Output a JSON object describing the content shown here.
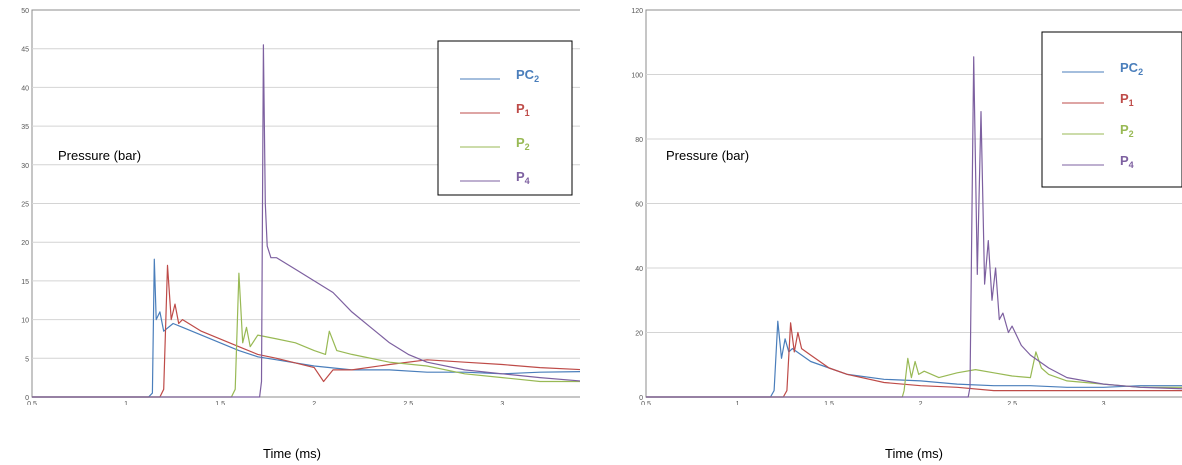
{
  "chart_data": [
    {
      "type": "line",
      "xlabel": "Time (ms)",
      "ylabel": "Pressure (bar)",
      "xlim": [
        0.5,
        3.45
      ],
      "ylim": [
        0,
        50
      ],
      "xticks": [
        "0.5",
        "1",
        "1.5",
        "2",
        "2.5",
        "3"
      ],
      "yticks": [
        "0",
        "5",
        "10",
        "15",
        "20",
        "25",
        "30",
        "35",
        "40",
        "45",
        "50"
      ],
      "grid": true,
      "legend_position": "top-right",
      "series": [
        {
          "name": "PC",
          "sub": "2",
          "color": "#4a7ebb",
          "x": [
            0.5,
            1.12,
            1.14,
            1.15,
            1.16,
            1.18,
            1.2,
            1.25,
            1.3,
            1.4,
            1.5,
            1.6,
            1.7,
            1.8,
            2.0,
            2.2,
            2.4,
            2.6,
            2.8,
            3.0,
            3.2,
            3.45
          ],
          "y": [
            0,
            0,
            0.5,
            17.8,
            10,
            11,
            8.5,
            9.5,
            9,
            8,
            7,
            6,
            5.2,
            4.8,
            4,
            3.5,
            3.5,
            3.2,
            3.2,
            3,
            3.2,
            3.3
          ]
        },
        {
          "name": "P",
          "sub": "1",
          "color": "#be4b48",
          "x": [
            0.5,
            1.18,
            1.2,
            1.22,
            1.24,
            1.26,
            1.28,
            1.3,
            1.4,
            1.5,
            1.6,
            1.7,
            1.8,
            2.0,
            2.05,
            2.1,
            2.2,
            2.4,
            2.6,
            2.8,
            3.0,
            3.2,
            3.45
          ],
          "y": [
            0,
            0,
            1,
            17,
            10,
            12,
            9.5,
            10,
            8.5,
            7.5,
            6.5,
            5.5,
            5,
            3.8,
            2,
            3.5,
            3.5,
            4.2,
            4.8,
            4.5,
            4.2,
            3.8,
            3.5
          ]
        },
        {
          "name": "P",
          "sub": "2",
          "color": "#98b954",
          "x": [
            0.5,
            1.56,
            1.58,
            1.6,
            1.62,
            1.64,
            1.66,
            1.7,
            1.8,
            1.9,
            2.0,
            2.06,
            2.08,
            2.12,
            2.2,
            2.4,
            2.6,
            2.8,
            3.0,
            3.2,
            3.45
          ],
          "y": [
            0,
            0,
            1,
            16,
            7,
            9,
            6.5,
            8,
            7.5,
            7,
            6,
            5.5,
            8.5,
            6,
            5.5,
            4.5,
            4,
            3,
            2.5,
            2,
            2
          ]
        },
        {
          "name": "P",
          "sub": "4",
          "color": "#7d60a0",
          "x": [
            0.5,
            1.71,
            1.72,
            1.73,
            1.74,
            1.75,
            1.77,
            1.8,
            1.9,
            2.0,
            2.1,
            2.2,
            2.3,
            2.4,
            2.5,
            2.6,
            2.8,
            3.0,
            3.2,
            3.45
          ],
          "y": [
            0,
            0,
            2,
            45.5,
            25,
            19.5,
            18,
            18,
            16.5,
            15,
            13.5,
            11,
            9,
            7,
            5.5,
            4.5,
            3.5,
            3,
            2.5,
            2
          ]
        }
      ]
    },
    {
      "type": "line",
      "xlabel": "Time (ms)",
      "ylabel": "Pressure (bar)",
      "xlim": [
        0.5,
        3.45
      ],
      "ylim": [
        0,
        120
      ],
      "xticks": [
        "0.5",
        "1",
        "1.5",
        "2",
        "2.5",
        "3"
      ],
      "yticks": [
        "0",
        "20",
        "40",
        "60",
        "80",
        "100",
        "120"
      ],
      "grid": true,
      "legend_position": "top-right",
      "series": [
        {
          "name": "PC",
          "sub": "2",
          "color": "#4a7ebb",
          "x": [
            0.5,
            1.18,
            1.2,
            1.22,
            1.24,
            1.26,
            1.28,
            1.3,
            1.4,
            1.5,
            1.6,
            1.8,
            2.0,
            2.2,
            2.4,
            2.6,
            2.8,
            3.0,
            3.2,
            3.45
          ],
          "y": [
            0,
            0,
            2,
            23.5,
            12,
            18,
            14,
            15,
            11,
            9,
            7,
            5.5,
            5,
            4,
            3.5,
            3.5,
            3,
            3,
            3.5,
            3.5
          ]
        },
        {
          "name": "P",
          "sub": "1",
          "color": "#be4b48",
          "x": [
            0.5,
            1.25,
            1.27,
            1.29,
            1.31,
            1.33,
            1.35,
            1.4,
            1.5,
            1.6,
            1.8,
            2.0,
            2.2,
            2.4,
            2.6,
            2.8,
            3.0,
            3.2,
            3.45
          ],
          "y": [
            0,
            0,
            2,
            23,
            14,
            20,
            15,
            13,
            9,
            7,
            4.5,
            3.5,
            3,
            2,
            2,
            2,
            2,
            2,
            2
          ]
        },
        {
          "name": "P",
          "sub": "2",
          "color": "#98b954",
          "x": [
            0.5,
            1.9,
            1.91,
            1.93,
            1.95,
            1.97,
            1.99,
            2.02,
            2.1,
            2.2,
            2.3,
            2.4,
            2.5,
            2.6,
            2.63,
            2.66,
            2.7,
            2.8,
            3.0,
            3.2,
            3.45
          ],
          "y": [
            0,
            0,
            2,
            12,
            6,
            11,
            7,
            8,
            6,
            7.5,
            8.5,
            7.5,
            6.5,
            6,
            14,
            9,
            7,
            5,
            4,
            3,
            3
          ]
        },
        {
          "name": "P",
          "sub": "4",
          "color": "#7d60a0",
          "x": [
            0.5,
            2.26,
            2.27,
            2.29,
            2.31,
            2.33,
            2.35,
            2.37,
            2.39,
            2.41,
            2.43,
            2.45,
            2.48,
            2.5,
            2.55,
            2.6,
            2.7,
            2.8,
            3.0,
            3.2,
            3.45
          ],
          "y": [
            0,
            0,
            3,
            105.5,
            38,
            88.5,
            35,
            48.5,
            30,
            40,
            24,
            26,
            20,
            22,
            16,
            13,
            9,
            6,
            4,
            3,
            2.5
          ]
        }
      ]
    }
  ]
}
